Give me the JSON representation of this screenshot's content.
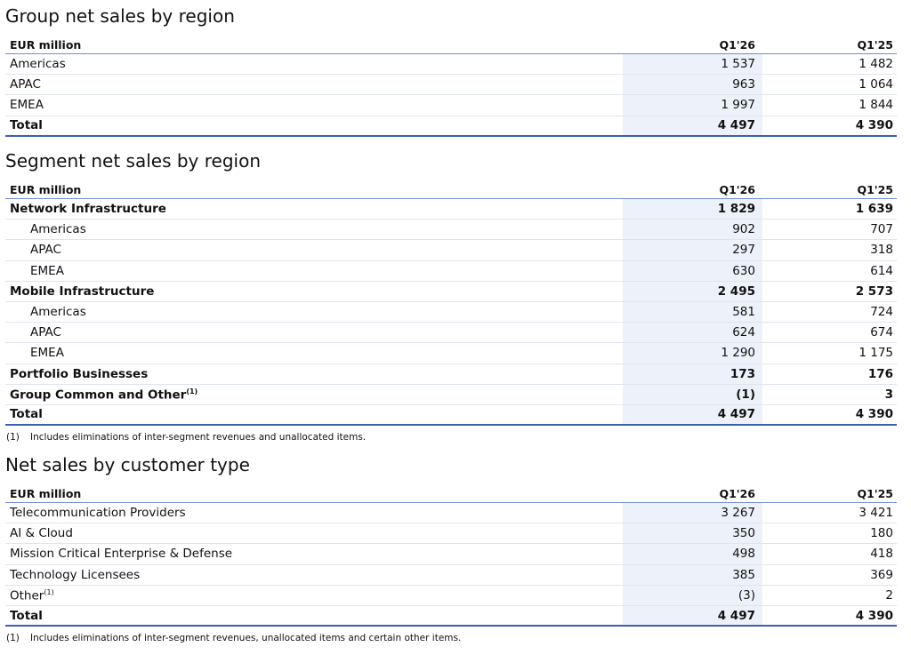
{
  "sections": [
    {
      "title": "Group net sales by region",
      "header": [
        "EUR million",
        "Q1'26",
        "Q1'25"
      ],
      "rows": [
        {
          "label": "Americas",
          "values": [
            "1 537",
            "1 482"
          ]
        },
        {
          "label": "APAC",
          "values": [
            "963",
            "1 064"
          ]
        },
        {
          "label": "EMEA",
          "values": [
            "1 997",
            "1 844"
          ]
        },
        {
          "label": "Total",
          "values": [
            "4 497",
            "4 390"
          ],
          "bold": true,
          "total": true
        }
      ]
    },
    {
      "title": "Segment net sales by region",
      "header": [
        "EUR million",
        "Q1'26",
        "Q1'25"
      ],
      "rows": [
        {
          "label": "Network Infrastructure",
          "values": [
            "1 829",
            "1 639"
          ],
          "bold": true
        },
        {
          "label": "Americas",
          "values": [
            "902",
            "707"
          ],
          "indent": true
        },
        {
          "label": "APAC",
          "values": [
            "297",
            "318"
          ],
          "indent": true
        },
        {
          "label": "EMEA",
          "values": [
            "630",
            "614"
          ],
          "indent": true
        },
        {
          "label": "Mobile Infrastructure",
          "values": [
            "2 495",
            "2 573"
          ],
          "bold": true
        },
        {
          "label": "Americas",
          "values": [
            "581",
            "724"
          ],
          "indent": true
        },
        {
          "label": "APAC",
          "values": [
            "624",
            "674"
          ],
          "indent": true
        },
        {
          "label": "EMEA",
          "values": [
            "1 290",
            "1 175"
          ],
          "indent": true
        },
        {
          "label": "Portfolio Businesses",
          "values": [
            "173",
            "176"
          ],
          "bold": true
        },
        {
          "label": "Group Common and Other",
          "note": "(1)",
          "values": [
            "(1)",
            "3"
          ],
          "bold": true
        },
        {
          "label": "Total",
          "values": [
            "4 497",
            "4 390"
          ],
          "bold": true,
          "total": true
        }
      ],
      "footnote": {
        "mark": "(1)",
        "text": "Includes eliminations of inter-segment revenues and unallocated items."
      }
    },
    {
      "title": "Net sales by customer type",
      "header": [
        "EUR million",
        "Q1'26",
        "Q1'25"
      ],
      "rows": [
        {
          "label": "Telecommunication Providers",
          "values": [
            "3 267",
            "3 421"
          ]
        },
        {
          "label": "AI & Cloud",
          "values": [
            "350",
            "180"
          ]
        },
        {
          "label": "Mission Critical Enterprise & Defense",
          "values": [
            "498",
            "418"
          ]
        },
        {
          "label": "Technology Licensees",
          "values": [
            "385",
            "369"
          ]
        },
        {
          "label": "Other",
          "note": "(1)",
          "values": [
            "(3)",
            "2"
          ]
        },
        {
          "label": "Total",
          "values": [
            "4 497",
            "4 390"
          ],
          "bold": true,
          "total": true
        }
      ],
      "footnote": {
        "mark": "(1)",
        "text": "Includes eliminations of inter-segment revenues, unallocated items and certain other items."
      }
    }
  ]
}
